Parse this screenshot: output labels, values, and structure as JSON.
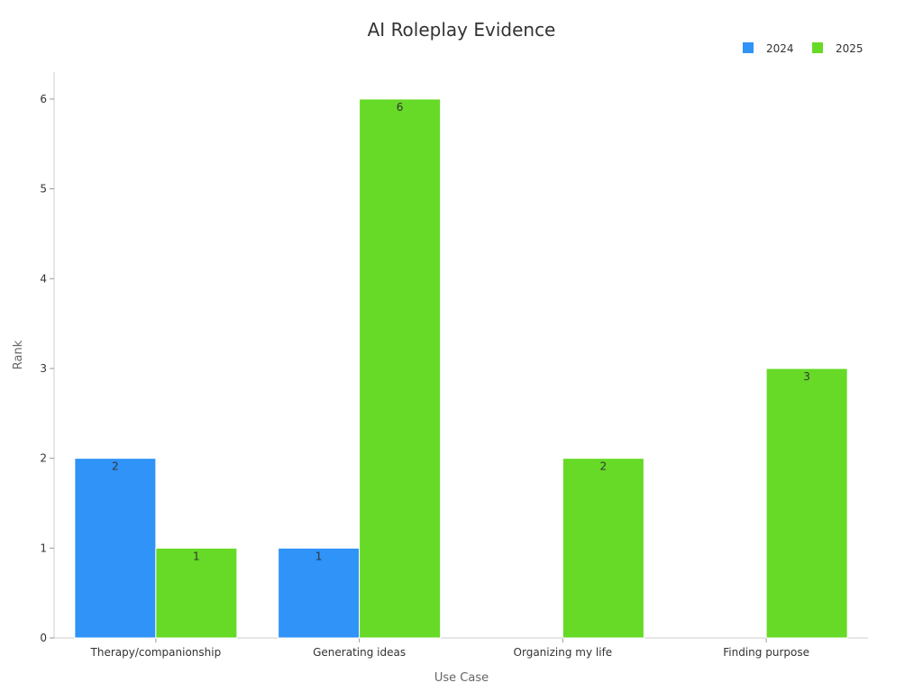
{
  "chart_data": {
    "type": "bar",
    "title": "AI Roleplay Evidence",
    "xlabel": "Use Case",
    "ylabel": "Rank",
    "categories": [
      "Therapy/companionship",
      "Generating ideas",
      "Organizing my life",
      "Finding purpose"
    ],
    "series": [
      {
        "name": "2024",
        "values": [
          2,
          1,
          null,
          null
        ],
        "color": "#2f93f8"
      },
      {
        "name": "2025",
        "values": [
          1,
          6,
          2,
          3
        ],
        "color": "#66da26"
      }
    ],
    "ylim": [
      0,
      6.3
    ],
    "yticks": [
      0,
      1,
      2,
      3,
      4,
      5,
      6
    ],
    "grid": false,
    "legend_position": "top-right",
    "data_labels": true
  }
}
